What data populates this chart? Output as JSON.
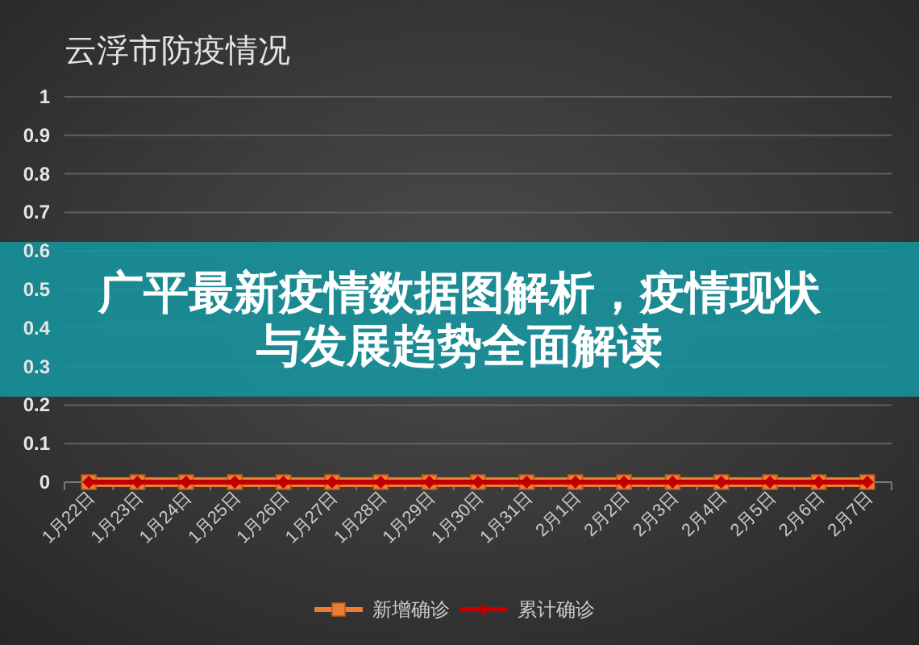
{
  "chart_data": {
    "type": "line",
    "title": "云浮市防疫情况",
    "categories": [
      "1月22日",
      "1月23日",
      "1月24日",
      "1月25日",
      "1月26日",
      "1月27日",
      "1月28日",
      "1月29日",
      "1月30日",
      "1月31日",
      "2月1日",
      "2月2日",
      "2月3日",
      "2月4日",
      "2月5日",
      "2月6日",
      "2月7日"
    ],
    "series": [
      {
        "name": "新增确诊",
        "color": "#ed7d31",
        "marker": "square",
        "values": [
          0,
          0,
          0,
          0,
          0,
          0,
          0,
          0,
          0,
          0,
          0,
          0,
          0,
          0,
          0,
          0,
          0
        ]
      },
      {
        "name": "累计确诊",
        "color": "#c00000",
        "marker": "diamond",
        "values": [
          0,
          0,
          0,
          0,
          0,
          0,
          0,
          0,
          0,
          0,
          0,
          0,
          0,
          0,
          0,
          0,
          0
        ]
      }
    ],
    "ylim": [
      0,
      1
    ],
    "yticks": [
      0,
      0.1,
      0.2,
      0.3,
      0.4,
      0.5,
      0.6,
      0.7,
      0.8,
      0.9,
      1
    ],
    "grid": "y",
    "legend": "bottom",
    "annotations": [
      "广平最新疫情数据图解析，疫情现状与发展趋势全面解读"
    ]
  }
}
